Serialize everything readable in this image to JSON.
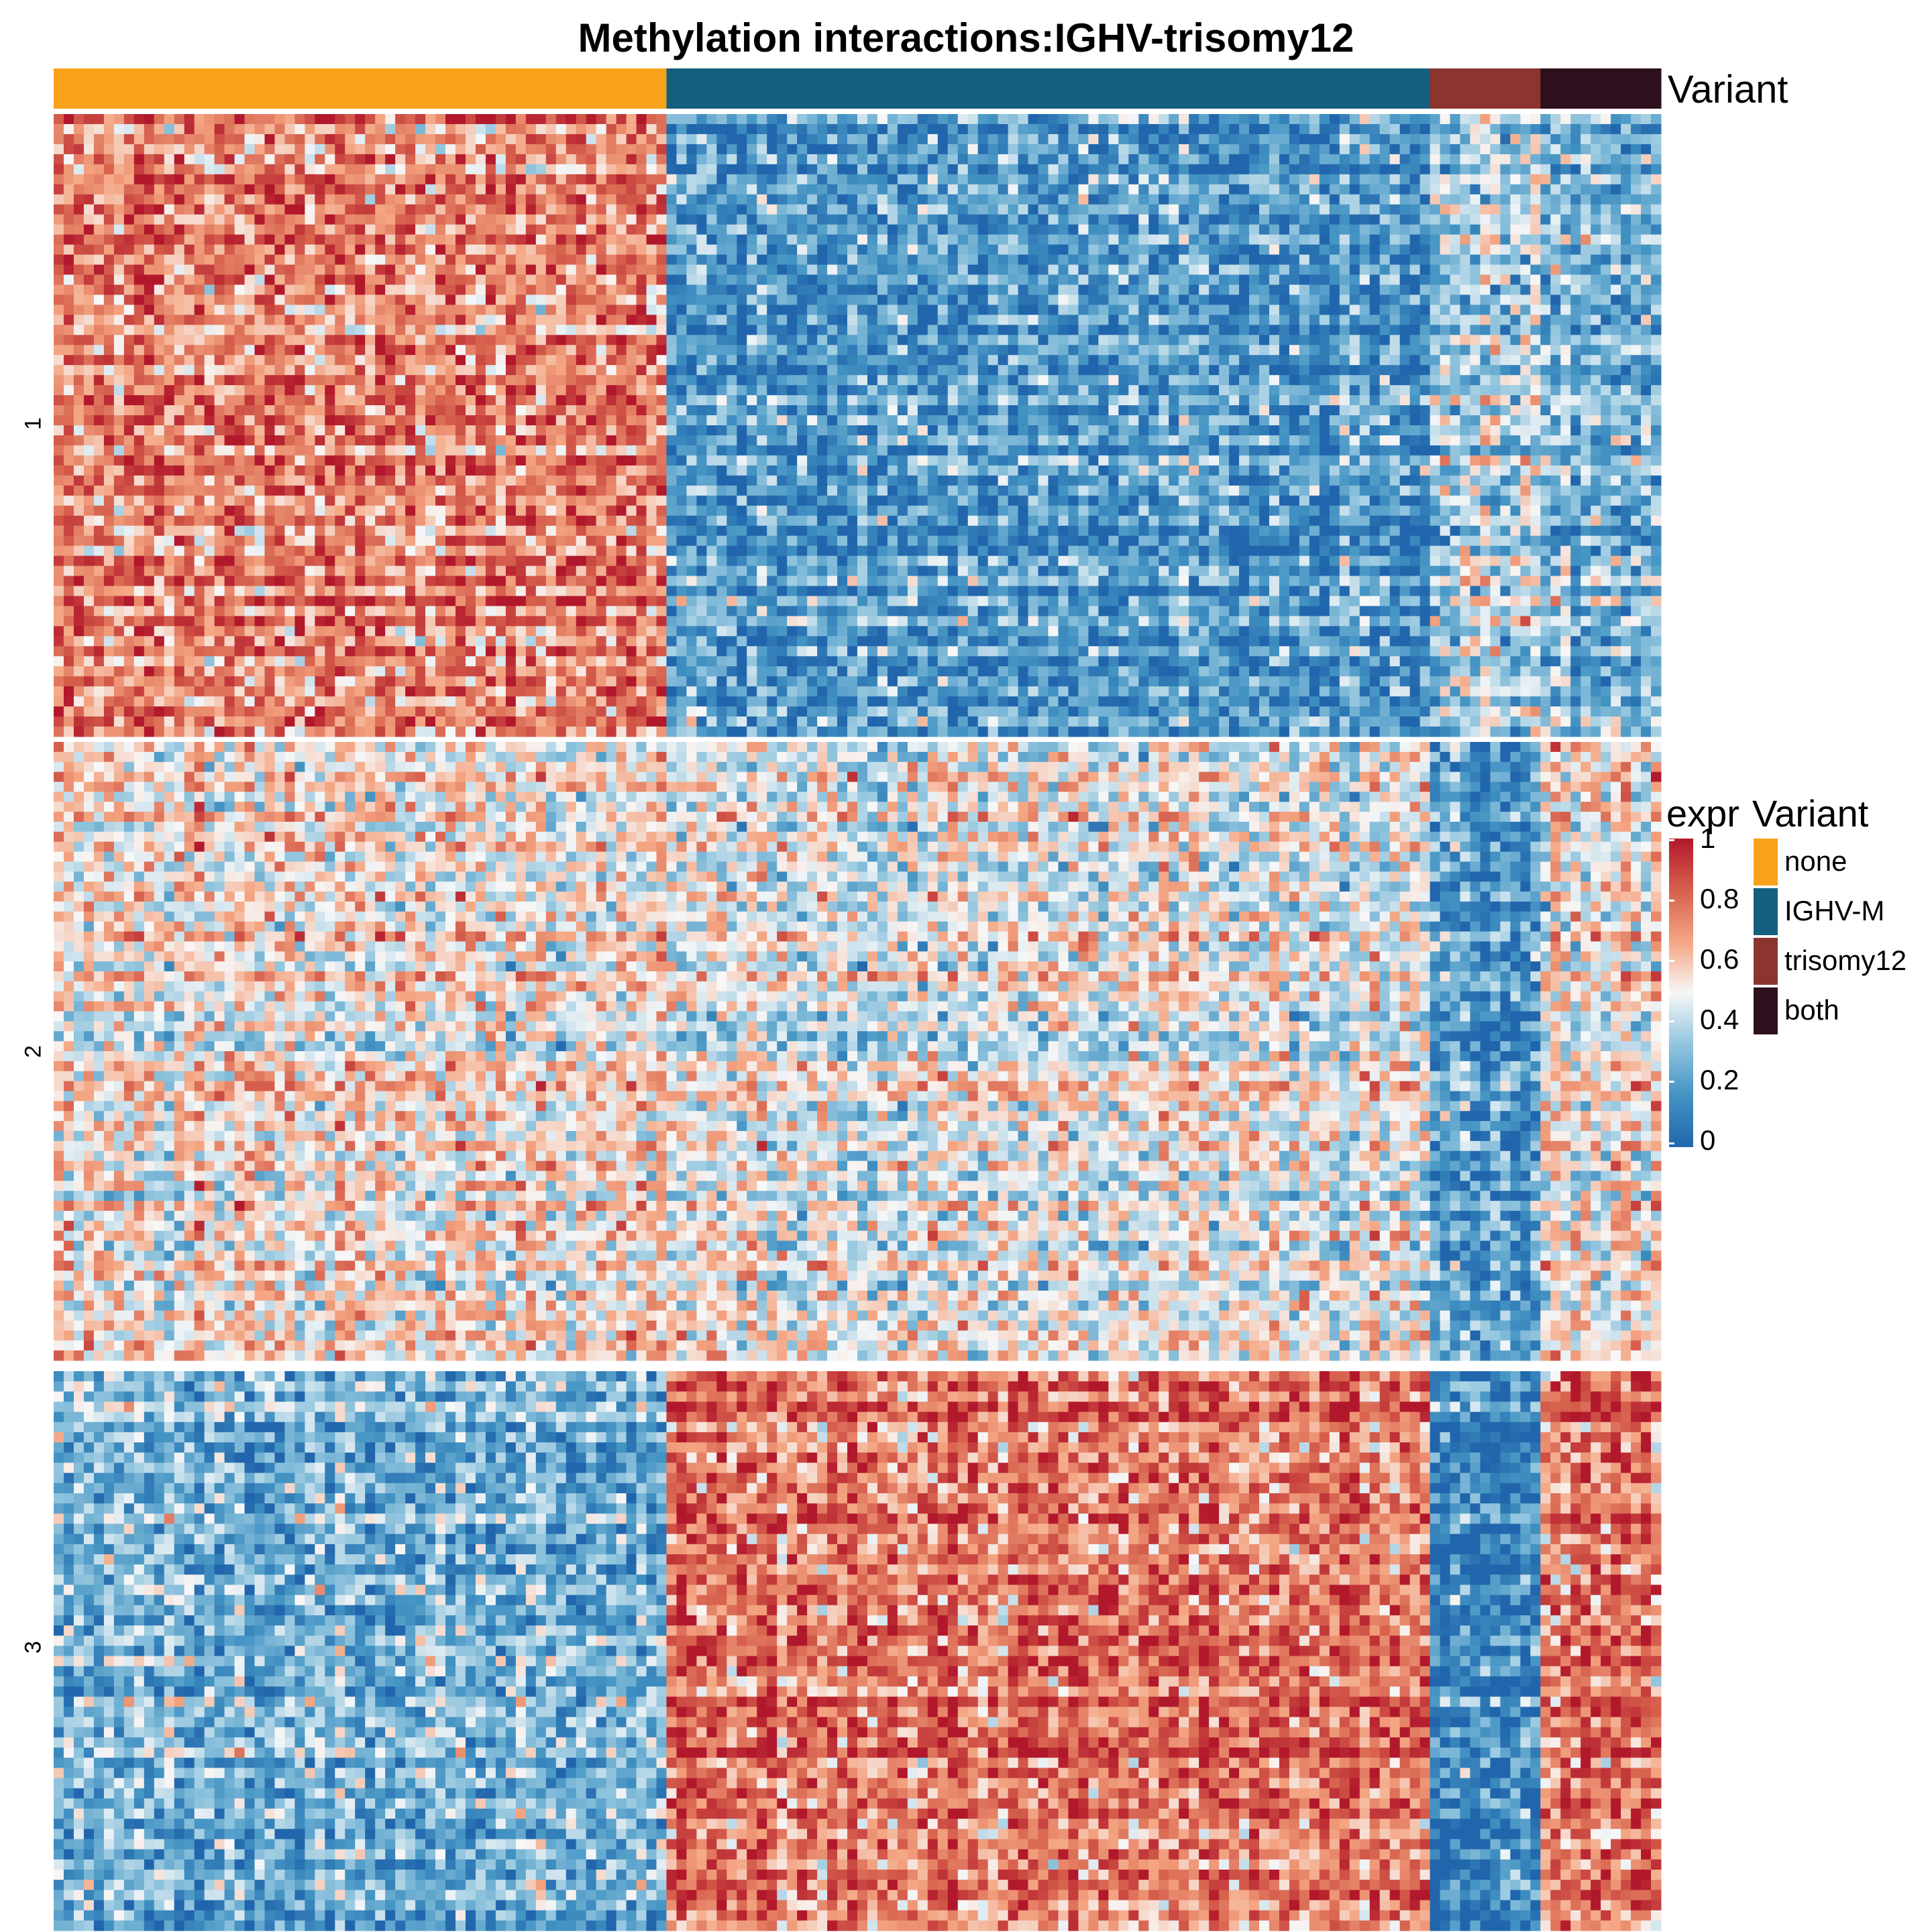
{
  "chart_data": {
    "type": "heatmap",
    "title": "Methylation interactions:IGHV-trisomy12",
    "annotation_name": "Variant",
    "column_groups": [
      {
        "name": "none",
        "color": "#f9a11b",
        "n_cols": 61
      },
      {
        "name": "IGHV-M",
        "color": "#155f7e",
        "n_cols": 76
      },
      {
        "name": "trisomy12",
        "color": "#8c3530",
        "n_cols": 11
      },
      {
        "name": "both",
        "color": "#2e0f1e",
        "n_cols": 12
      }
    ],
    "row_slices": [
      {
        "label": "1",
        "n_rows": 62
      },
      {
        "label": "2",
        "n_rows": 62
      },
      {
        "label": "3",
        "n_rows": 55
      }
    ],
    "pattern_means": {
      "1": {
        "none": 0.75,
        "IGHV-M": 0.2,
        "trisomy12": 0.4,
        "both": 0.3
      },
      "2": {
        "none": 0.55,
        "IGHV-M": 0.5,
        "trisomy12": 0.2,
        "both": 0.55
      },
      "3": {
        "none": 0.3,
        "IGHV-M": 0.8,
        "trisomy12": 0.15,
        "both": 0.8
      }
    },
    "color_scale": {
      "name": "expr",
      "min": 0,
      "max": 1,
      "ticks": [
        "1",
        "0.8",
        "0.6",
        "0.4",
        "0.2",
        "0"
      ],
      "colors": [
        "#2166ac",
        "#4393c3",
        "#92c5de",
        "#f7f7f7",
        "#f4a582",
        "#d6604d",
        "#b2182b"
      ]
    },
    "legend": {
      "expr_title": "expr",
      "variant_title": "Variant",
      "variant_items": [
        {
          "label": "none",
          "color": "#f9a11b"
        },
        {
          "label": "IGHV-M",
          "color": "#155f7e"
        },
        {
          "label": "trisomy12",
          "color": "#8c3530"
        },
        {
          "label": "both",
          "color": "#2e0f1e"
        }
      ]
    }
  }
}
